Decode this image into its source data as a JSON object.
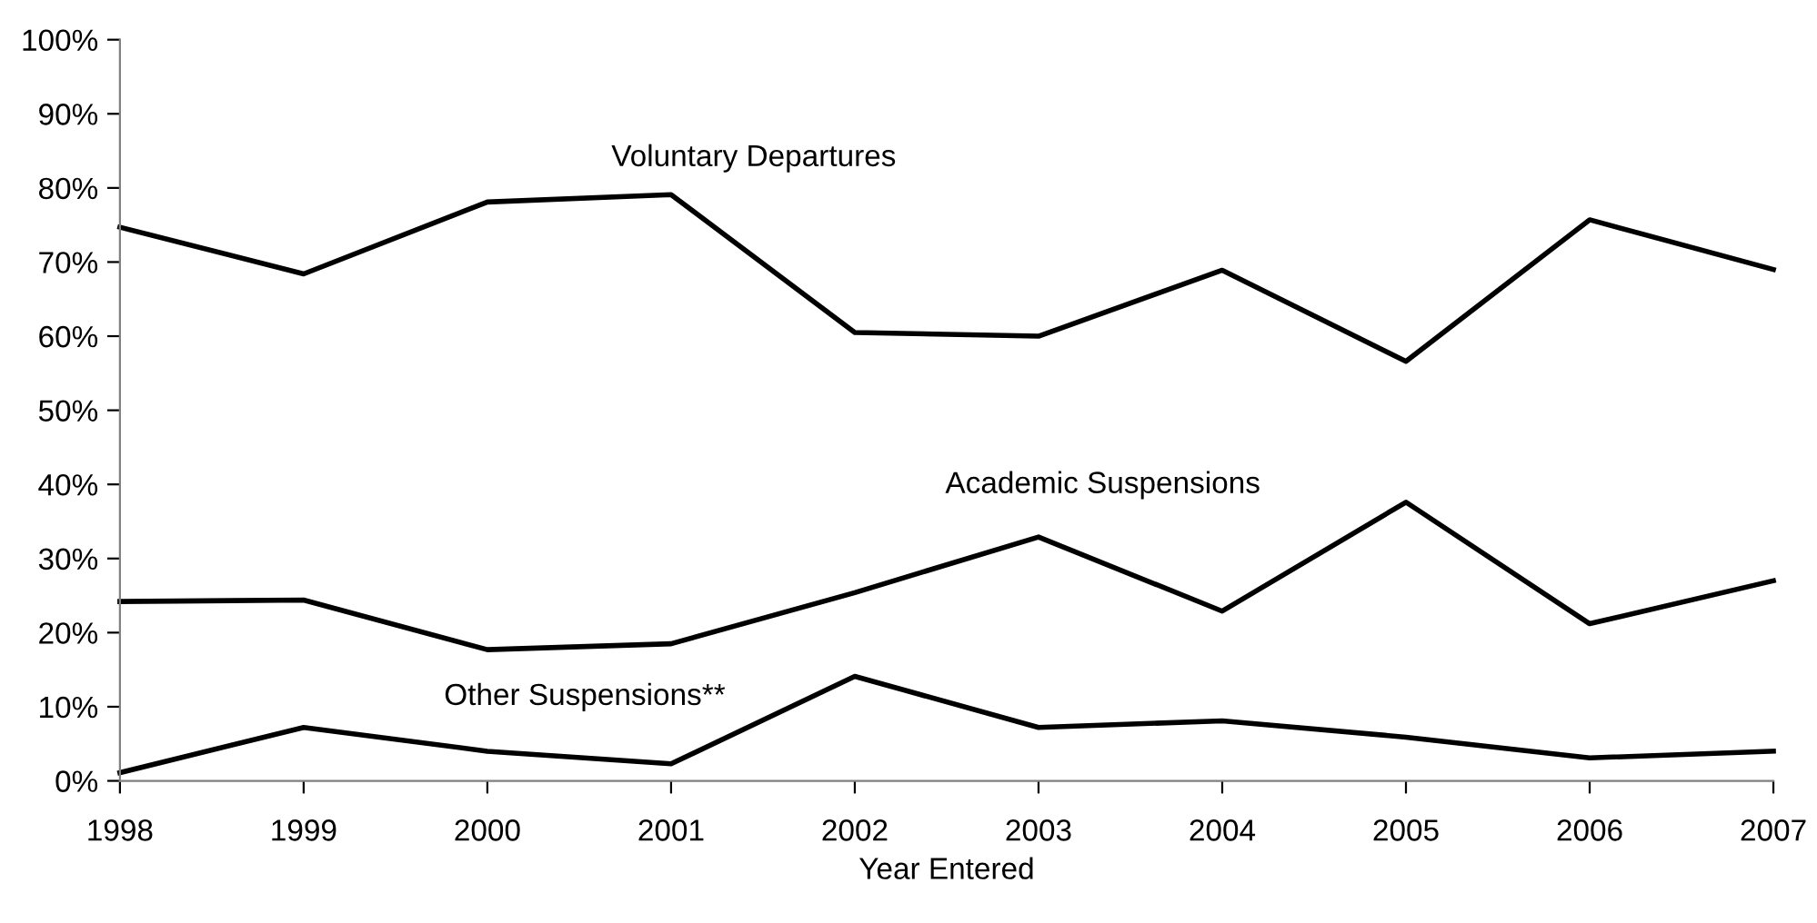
{
  "chart_data": {
    "type": "line",
    "xlabel": "Year Entered",
    "x": [
      1998,
      1999,
      2000,
      2001,
      2002,
      2003,
      2004,
      2005,
      2006,
      2007
    ],
    "series": [
      {
        "name": "Voluntary Departures",
        "color": "#000000",
        "values": [
          74.7,
          68.4,
          78.1,
          79.1,
          60.5,
          60.0,
          68.9,
          56.6,
          75.7,
          69.0
        ]
      },
      {
        "name": "Academic Suspensions",
        "color": "#000000",
        "values": [
          24.2,
          24.4,
          17.7,
          18.5,
          25.4,
          32.9,
          22.9,
          37.6,
          21.2,
          27.0
        ]
      },
      {
        "name": "Other Suspensions**",
        "color": "#000000",
        "values": [
          1.1,
          7.2,
          4.0,
          2.3,
          14.1,
          7.2,
          8.1,
          5.9,
          3.1,
          4.0
        ]
      }
    ],
    "xlim": [
      1998,
      2007
    ],
    "xticks": [
      1998,
      1999,
      2000,
      2001,
      2002,
      2003,
      2004,
      2005,
      2006,
      2007
    ],
    "ylim": [
      0,
      100
    ],
    "yticks": [
      {
        "value": 0,
        "label": "0%"
      },
      {
        "value": 10,
        "label": "10%"
      },
      {
        "value": 20,
        "label": "20%"
      },
      {
        "value": 30,
        "label": "30%"
      },
      {
        "value": 40,
        "label": "40%"
      },
      {
        "value": 50,
        "label": "50%"
      },
      {
        "value": 60,
        "label": "60%"
      },
      {
        "value": 70,
        "label": "70%"
      },
      {
        "value": 80,
        "label": "80%"
      },
      {
        "value": 90,
        "label": "90%"
      },
      {
        "value": 100,
        "label": "100%"
      }
    ],
    "grid": false,
    "legend": false,
    "marker": "none",
    "line_style": "solid"
  }
}
